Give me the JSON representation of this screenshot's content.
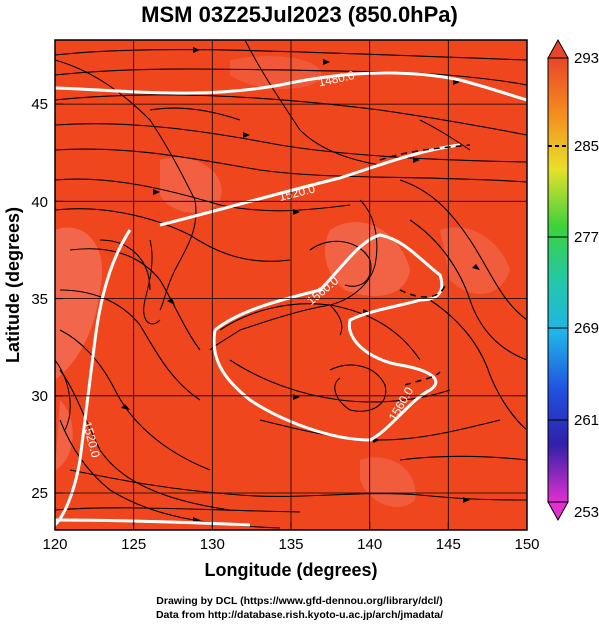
{
  "title": "MSM 03Z25Jul2023 (850.0hPa)",
  "axes": {
    "x_label": "Longitude (degrees)",
    "y_label": "Latitude  (degrees)",
    "x_ticks": [
      "120",
      "125",
      "130",
      "135",
      "140",
      "145",
      "150"
    ],
    "y_ticks": [
      "25",
      "30",
      "35",
      "40",
      "45"
    ],
    "x_range": [
      120,
      150
    ],
    "y_range": [
      22.4,
      47.6
    ]
  },
  "colorbar": {
    "labels": [
      "293",
      "285",
      "277",
      "269",
      "261",
      "253"
    ],
    "min": 253,
    "max": 293
  },
  "contours": {
    "labels": [
      "1480.0",
      "1520.0",
      "1560.0",
      "1560.0",
      "1520.0"
    ]
  },
  "credits": {
    "line1": "Drawing by DCL (https://www.gfd-dennou.org/library/dcl/)",
    "line2": "Data from http://database.rish.kyoto-u.ac.jp/arch/jmadata/"
  },
  "colors": {
    "field_main": "#f0461e",
    "field_warm": "#f26a50",
    "contour": "#ffffff",
    "streamline": "#000000"
  }
}
